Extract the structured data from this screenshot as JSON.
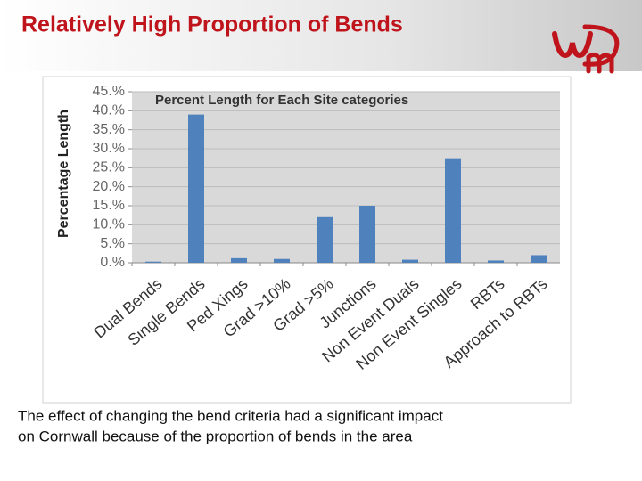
{
  "slide_title": "Relatively High Proportion of Bends",
  "caption": [
    "The effect of changing the bend criteria had a significant impact",
    "on Cornwall because of the proportion of bends in the area"
  ],
  "chart_data": {
    "type": "bar",
    "title": "Percent Length for Each Site categories",
    "y_label": "Percentage Length",
    "categories": [
      "Dual Bends",
      "Single Bends",
      "Ped Xings",
      "Grad >10%",
      "Grad >5%",
      "Junctions",
      "Non Event Duals",
      "Non Event Singles",
      "RBTs",
      "Approach to RBTs"
    ],
    "values": [
      0.3,
      39,
      1.2,
      1.0,
      12,
      15,
      0.8,
      27.5,
      0.6,
      2.0
    ],
    "color": "#4f81bd",
    "ylim": [
      0,
      45
    ],
    "yticks": [
      {
        "value": 0,
        "label": "0.%"
      },
      {
        "value": 5,
        "label": "5.%"
      },
      {
        "value": 10,
        "label": "10.%"
      },
      {
        "value": 15,
        "label": "15.%"
      },
      {
        "value": 20,
        "label": "20.%"
      },
      {
        "value": 25,
        "label": "25.%"
      },
      {
        "value": 30,
        "label": "30.%"
      },
      {
        "value": 35,
        "label": "35.%"
      },
      {
        "value": 40,
        "label": "40.%"
      },
      {
        "value": 45,
        "label": "45.%"
      }
    ],
    "grid": true
  }
}
